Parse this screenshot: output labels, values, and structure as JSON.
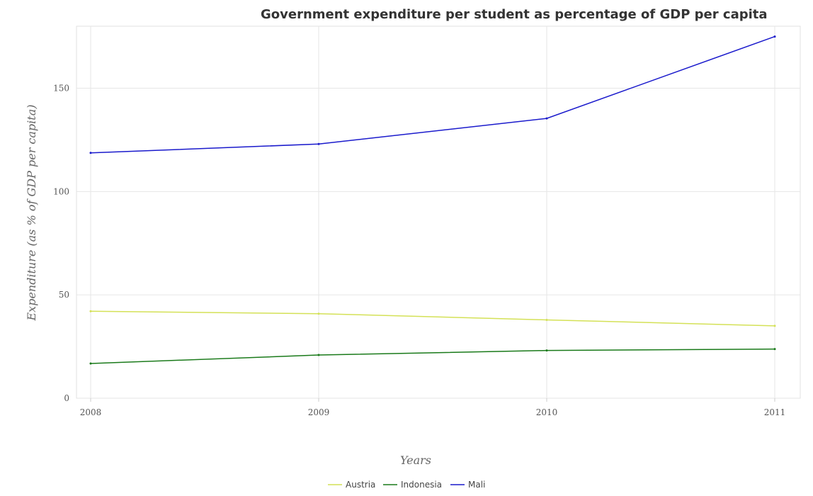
{
  "chart_data": {
    "type": "line",
    "title": "Government expenditure per student as percentage of GDP per capita",
    "xlabel": "Years",
    "ylabel": "Expenditure (as % of GDP per capita)",
    "categories": [
      "2008",
      "2009",
      "2010",
      "2011"
    ],
    "yticks": [
      "0",
      "50",
      "100",
      "150"
    ],
    "ylim": [
      0,
      180
    ],
    "series": [
      {
        "name": "Austria",
        "color": "#d4e157",
        "values": [
          42.1,
          40.9,
          37.9,
          35.0
        ]
      },
      {
        "name": "Indonesia",
        "color": "#1a7a1a",
        "values": [
          16.8,
          20.9,
          23.1,
          23.8
        ]
      },
      {
        "name": "Mali",
        "color": "#1a1acc",
        "values": [
          118.7,
          123.0,
          135.4,
          175.0
        ]
      }
    ],
    "legend_position": "bottom-center",
    "grid": true
  }
}
